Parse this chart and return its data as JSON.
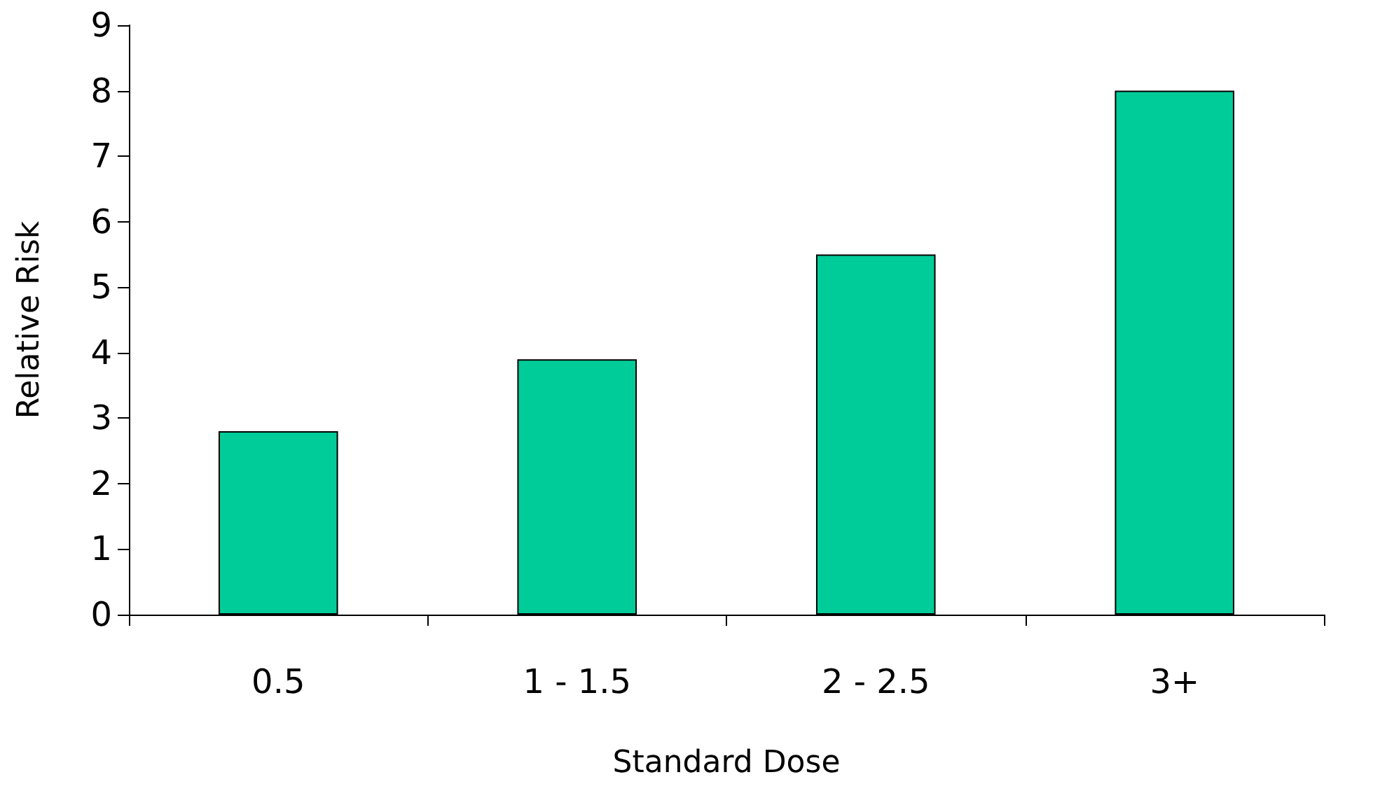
{
  "chart_data": {
    "type": "bar",
    "xlabel": "Standard Dose",
    "ylabel": "Relative Risk",
    "categories": [
      "0.5",
      "1 - 1.5",
      "2 - 2.5",
      "3+"
    ],
    "values": [
      2.8,
      3.9,
      5.5,
      8.0
    ],
    "color": "#00cc99",
    "ylim": [
      0,
      9
    ],
    "yticks": [
      0,
      1,
      2,
      3,
      4,
      5,
      6,
      7,
      8,
      9
    ],
    "grid": false
  }
}
